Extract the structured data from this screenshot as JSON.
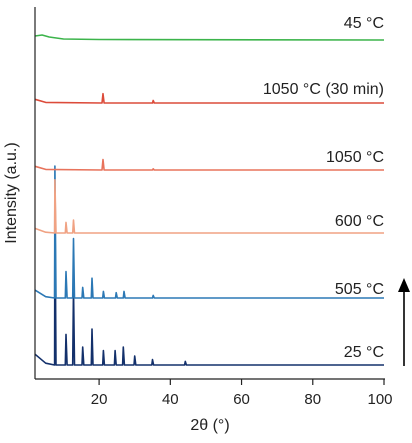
{
  "chart_data": {
    "type": "line",
    "xlabel": "2θ (°)",
    "ylabel": "Intensity (a.u.)",
    "xlim": [
      2,
      100
    ],
    "xticks": [
      20,
      40,
      60,
      80,
      100
    ],
    "xtick_labels": [
      "20",
      "40",
      "60",
      "80",
      "100"
    ],
    "yticks": "none",
    "grid": false,
    "legend": "labels on right side of each trace",
    "annotation": "upward arrow on the right (heating direction)",
    "series": [
      {
        "name": "25 °C",
        "color": "#13306b",
        "points": [
          [
            2,
            0.06
          ],
          [
            5,
            0.01
          ],
          [
            7.5,
            0.0
          ],
          [
            7.6,
            0.95
          ],
          [
            7.9,
            0.0
          ],
          [
            10.5,
            0.0
          ],
          [
            10.7,
            0.17
          ],
          [
            11,
            0.0
          ],
          [
            12.6,
            0.0
          ],
          [
            12.8,
            0.43
          ],
          [
            13.1,
            0.0
          ],
          [
            15.2,
            0.0
          ],
          [
            15.4,
            0.1
          ],
          [
            15.7,
            0.0
          ],
          [
            17.8,
            0.0
          ],
          [
            18.0,
            0.2
          ],
          [
            18.3,
            0.0
          ],
          [
            21,
            0.0
          ],
          [
            21.2,
            0.08
          ],
          [
            21.5,
            0.0
          ],
          [
            24.3,
            0.0
          ],
          [
            24.5,
            0.08
          ],
          [
            24.8,
            0.0
          ],
          [
            26.6,
            0.0
          ],
          [
            26.8,
            0.1
          ],
          [
            27.1,
            0.0
          ],
          [
            29.8,
            0.0
          ],
          [
            30,
            0.05
          ],
          [
            30.3,
            0.0
          ],
          [
            34.8,
            0.0
          ],
          [
            35,
            0.03
          ],
          [
            35.3,
            0.0
          ],
          [
            44,
            0.0
          ],
          [
            44.2,
            0.02
          ],
          [
            44.5,
            0.0
          ],
          [
            100,
            0.0
          ]
        ]
      },
      {
        "name": "505 °C",
        "color": "#2b78b5",
        "points": [
          [
            2,
            0.06
          ],
          [
            5,
            0.01
          ],
          [
            7.5,
            0.0
          ],
          [
            7.6,
            1.0
          ],
          [
            7.9,
            0.0
          ],
          [
            10.5,
            0.0
          ],
          [
            10.7,
            0.2
          ],
          [
            11,
            0.0
          ],
          [
            12.6,
            0.0
          ],
          [
            12.8,
            0.45
          ],
          [
            13.1,
            0.0
          ],
          [
            15.2,
            0.0
          ],
          [
            15.4,
            0.08
          ],
          [
            15.7,
            0.0
          ],
          [
            17.8,
            0.0
          ],
          [
            18.0,
            0.15
          ],
          [
            18.3,
            0.0
          ],
          [
            21,
            0.0
          ],
          [
            21.2,
            0.05
          ],
          [
            21.5,
            0.0
          ],
          [
            24.6,
            0.0
          ],
          [
            24.8,
            0.04
          ],
          [
            25.1,
            0.0
          ],
          [
            26.8,
            0.0
          ],
          [
            27,
            0.05
          ],
          [
            27.3,
            0.0
          ],
          [
            35,
            0.0
          ],
          [
            35.2,
            0.02
          ],
          [
            35.5,
            0.0
          ],
          [
            100,
            0.0
          ]
        ]
      },
      {
        "name": "600 °C",
        "color": "#f0a283",
        "points": [
          [
            2,
            0.06
          ],
          [
            5,
            0.01
          ],
          [
            7.5,
            0.0
          ],
          [
            7.6,
            0.7
          ],
          [
            7.9,
            0.0
          ],
          [
            10.5,
            0.0
          ],
          [
            10.7,
            0.14
          ],
          [
            11,
            0.0
          ],
          [
            12.6,
            0.0
          ],
          [
            12.8,
            0.17
          ],
          [
            13.1,
            0.0
          ],
          [
            100,
            0.0
          ]
        ]
      },
      {
        "name": "1050 °C",
        "color": "#e8735c",
        "points": [
          [
            2,
            0.06
          ],
          [
            5,
            0.01
          ],
          [
            20.8,
            0.0
          ],
          [
            21.1,
            0.17
          ],
          [
            21.4,
            0.0
          ],
          [
            35,
            0.0
          ],
          [
            35.2,
            0.02
          ],
          [
            35.5,
            0.0
          ],
          [
            100,
            0.0
          ]
        ]
      },
      {
        "name": "1050 °C (30 min)",
        "color": "#dc4b3a",
        "points": [
          [
            2,
            0.06
          ],
          [
            5,
            0.01
          ],
          [
            20.8,
            0.0
          ],
          [
            21.1,
            0.15
          ],
          [
            21.4,
            0.0
          ],
          [
            35,
            0.0
          ],
          [
            35.2,
            0.04
          ],
          [
            35.5,
            0.0
          ],
          [
            100,
            0.0
          ]
        ]
      },
      {
        "name": "45 °C",
        "color": "#3cb44b",
        "points": [
          [
            2,
            0.08
          ],
          [
            4,
            0.1
          ],
          [
            6,
            0.06
          ],
          [
            10,
            0.02
          ],
          [
            20,
            0.01
          ],
          [
            100,
            0.0
          ]
        ]
      }
    ]
  }
}
